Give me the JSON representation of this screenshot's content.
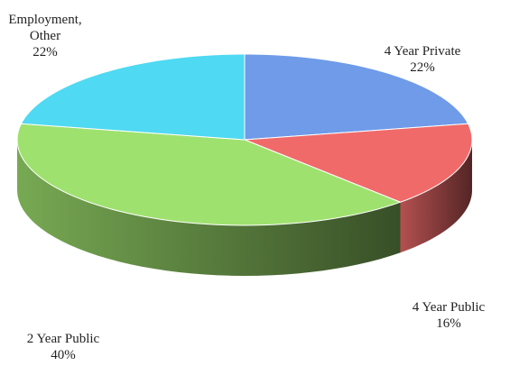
{
  "chart_data": {
    "type": "pie",
    "categories": [
      "4 Year Private",
      "4 Year Public",
      "2 Year Public",
      "Employment, Other"
    ],
    "values": [
      22,
      16,
      40,
      22
    ],
    "value_labels": [
      "22%",
      "16%",
      "40%",
      "22%"
    ],
    "colors": [
      "#6f9be8",
      "#f06a6a",
      "#9fe16f",
      "#4fd9f2"
    ]
  }
}
